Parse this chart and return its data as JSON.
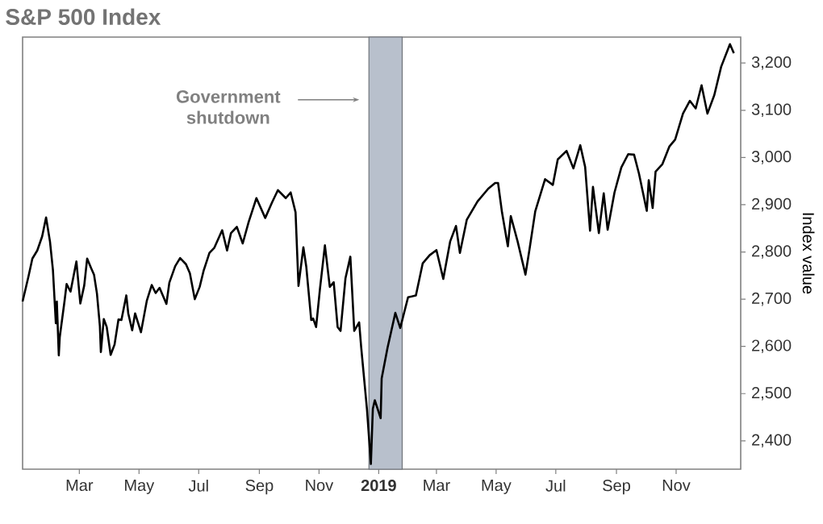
{
  "chart_data": {
    "type": "line",
    "title": "S&P 500 Index",
    "ylabel": "Index value",
    "color": "#000000",
    "x": [
      "2018-01-02",
      "2018-01-08",
      "2018-01-12",
      "2018-01-17",
      "2018-01-22",
      "2018-01-26",
      "2018-01-30",
      "2018-02-02",
      "2018-02-05",
      "2018-02-06",
      "2018-02-08",
      "2018-02-09",
      "2018-02-14",
      "2018-02-16",
      "2018-02-20",
      "2018-02-26",
      "2018-03-02",
      "2018-03-06",
      "2018-03-09",
      "2018-03-13",
      "2018-03-16",
      "2018-03-19",
      "2018-03-22",
      "2018-03-23",
      "2018-03-26",
      "2018-03-29",
      "2018-04-02",
      "2018-04-06",
      "2018-04-10",
      "2018-04-13",
      "2018-04-18",
      "2018-04-20",
      "2018-04-24",
      "2018-04-27",
      "2018-05-03",
      "2018-05-09",
      "2018-05-14",
      "2018-05-18",
      "2018-05-22",
      "2018-05-29",
      "2018-06-01",
      "2018-06-07",
      "2018-06-12",
      "2018-06-18",
      "2018-06-22",
      "2018-06-27",
      "2018-07-02",
      "2018-07-06",
      "2018-07-12",
      "2018-07-17",
      "2018-07-25",
      "2018-07-30",
      "2018-08-03",
      "2018-08-09",
      "2018-08-15",
      "2018-08-21",
      "2018-08-29",
      "2018-09-07",
      "2018-09-14",
      "2018-09-20",
      "2018-09-28",
      "2018-10-03",
      "2018-10-08",
      "2018-10-11",
      "2018-10-16",
      "2018-10-19",
      "2018-10-24",
      "2018-10-26",
      "2018-10-29",
      "2018-11-02",
      "2018-11-07",
      "2018-11-12",
      "2018-11-16",
      "2018-11-20",
      "2018-11-23",
      "2018-11-28",
      "2018-12-03",
      "2018-12-07",
      "2018-12-12",
      "2018-12-14",
      "2018-12-20",
      "2018-12-24",
      "2018-12-26",
      "2018-12-28",
      "2019-01-03",
      "2019-01-04",
      "2019-01-10",
      "2019-01-18",
      "2019-01-23",
      "2019-01-31",
      "2019-02-08",
      "2019-02-15",
      "2019-02-22",
      "2019-03-01",
      "2019-03-08",
      "2019-03-15",
      "2019-03-21",
      "2019-03-25",
      "2019-04-01",
      "2019-04-12",
      "2019-04-23",
      "2019-04-30",
      "2019-05-03",
      "2019-05-07",
      "2019-05-13",
      "2019-05-16",
      "2019-05-23",
      "2019-05-31",
      "2019-06-04",
      "2019-06-10",
      "2019-06-20",
      "2019-06-28",
      "2019-07-03",
      "2019-07-12",
      "2019-07-19",
      "2019-07-26",
      "2019-07-31",
      "2019-08-05",
      "2019-08-08",
      "2019-08-14",
      "2019-08-19",
      "2019-08-23",
      "2019-08-30",
      "2019-09-06",
      "2019-09-13",
      "2019-09-19",
      "2019-09-24",
      "2019-10-02",
      "2019-10-04",
      "2019-10-08",
      "2019-10-11",
      "2019-10-18",
      "2019-10-25",
      "2019-10-31",
      "2019-11-08",
      "2019-11-15",
      "2019-11-21",
      "2019-11-27",
      "2019-12-03",
      "2019-12-10",
      "2019-12-17",
      "2019-12-26",
      "2019-12-30"
    ],
    "values": [
      2695,
      2748,
      2786,
      2803,
      2833,
      2873,
      2822,
      2762,
      2649,
      2695,
      2581,
      2620,
      2698,
      2732,
      2716,
      2780,
      2691,
      2729,
      2786,
      2766,
      2752,
      2712,
      2643,
      2588,
      2658,
      2641,
      2582,
      2604,
      2657,
      2656,
      2708,
      2670,
      2634,
      2670,
      2630,
      2697,
      2730,
      2713,
      2724,
      2690,
      2735,
      2770,
      2787,
      2774,
      2755,
      2700,
      2726,
      2760,
      2798,
      2809,
      2846,
      2803,
      2840,
      2853,
      2818,
      2863,
      2914,
      2872,
      2905,
      2931,
      2914,
      2926,
      2884,
      2728,
      2810,
      2768,
      2656,
      2659,
      2641,
      2723,
      2814,
      2726,
      2736,
      2641,
      2633,
      2744,
      2790,
      2633,
      2651,
      2600,
      2467,
      2351,
      2468,
      2486,
      2448,
      2532,
      2597,
      2671,
      2639,
      2704,
      2708,
      2776,
      2793,
      2804,
      2743,
      2822,
      2855,
      2798,
      2868,
      2907,
      2934,
      2946,
      2946,
      2884,
      2812,
      2876,
      2822,
      2752,
      2804,
      2886,
      2954,
      2942,
      2996,
      3014,
      2977,
      3026,
      2980,
      2845,
      2938,
      2840,
      2924,
      2847,
      2926,
      2979,
      3007,
      3006,
      2966,
      2887,
      2952,
      2893,
      2970,
      2986,
      3023,
      3038,
      3093,
      3120,
      3104,
      3153,
      3093,
      3132,
      3192,
      3240,
      3221
    ],
    "xlim": [
      "2018-01-02",
      "2020-01-06"
    ],
    "xticks": [
      {
        "value": "2018-03-01",
        "label": "Mar"
      },
      {
        "value": "2018-05-01",
        "label": "May"
      },
      {
        "value": "2018-07-01",
        "label": "Jul"
      },
      {
        "value": "2018-09-01",
        "label": "Sep"
      },
      {
        "value": "2018-11-01",
        "label": "Nov"
      },
      {
        "value": "2019-01-01",
        "label": "**2019**"
      },
      {
        "value": "2019-03-01",
        "label": "Mar"
      },
      {
        "value": "2019-05-01",
        "label": "May"
      },
      {
        "value": "2019-07-01",
        "label": "Jul"
      },
      {
        "value": "2019-09-01",
        "label": "Sep"
      },
      {
        "value": "2019-11-01",
        "label": "Nov"
      }
    ],
    "ylim": [
      2340,
      3255
    ],
    "yticks": [
      {
        "value": 2400,
        "label": "2,400"
      },
      {
        "value": 2500,
        "label": "2,500"
      },
      {
        "value": 2600,
        "label": "2,600"
      },
      {
        "value": 2700,
        "label": "2,700"
      },
      {
        "value": 2800,
        "label": "2,800"
      },
      {
        "value": 2900,
        "label": "2,900"
      },
      {
        "value": 3000,
        "label": "3,000"
      },
      {
        "value": 3100,
        "label": "3,100"
      },
      {
        "value": 3200,
        "label": "3,200"
      }
    ],
    "bands": [
      {
        "axis": "x",
        "from": "2018-12-22",
        "to": "2019-01-25",
        "label": "Government shutdown",
        "color": "#b8c0cc"
      }
    ],
    "grid": false,
    "line_style": "solid",
    "marker": "none"
  }
}
